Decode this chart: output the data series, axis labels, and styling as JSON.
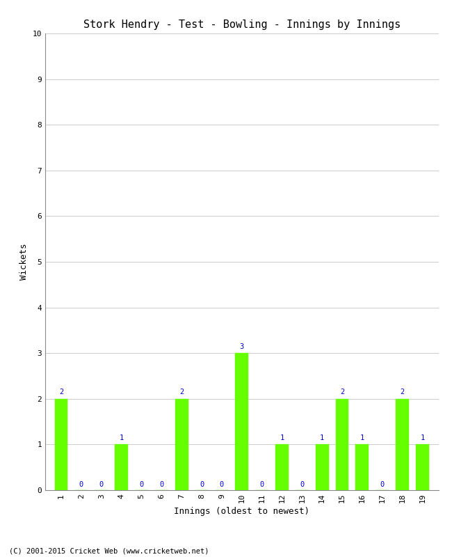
{
  "title": "Stork Hendry - Test - Bowling - Innings by Innings",
  "xlabel": "Innings (oldest to newest)",
  "ylabel": "Wickets",
  "innings": [
    1,
    2,
    3,
    4,
    5,
    6,
    7,
    8,
    9,
    10,
    11,
    12,
    13,
    14,
    15,
    16,
    17,
    18,
    19
  ],
  "wickets": [
    2,
    0,
    0,
    1,
    0,
    0,
    2,
    0,
    0,
    3,
    0,
    1,
    0,
    1,
    2,
    1,
    0,
    2,
    1
  ],
  "bar_color": "#66ff00",
  "bar_edge_color": "#66ff00",
  "label_color": "#0000cc",
  "background_color": "#ffffff",
  "grid_color": "#cccccc",
  "ylim": [
    0,
    10
  ],
  "yticks": [
    0,
    1,
    2,
    3,
    4,
    5,
    6,
    7,
    8,
    9,
    10
  ],
  "title_fontsize": 11,
  "axis_label_fontsize": 9,
  "tick_label_fontsize": 8,
  "bar_label_fontsize": 7.5,
  "footer_text": "(C) 2001-2015 Cricket Web (www.cricketweb.net)",
  "footer_fontsize": 7.5
}
